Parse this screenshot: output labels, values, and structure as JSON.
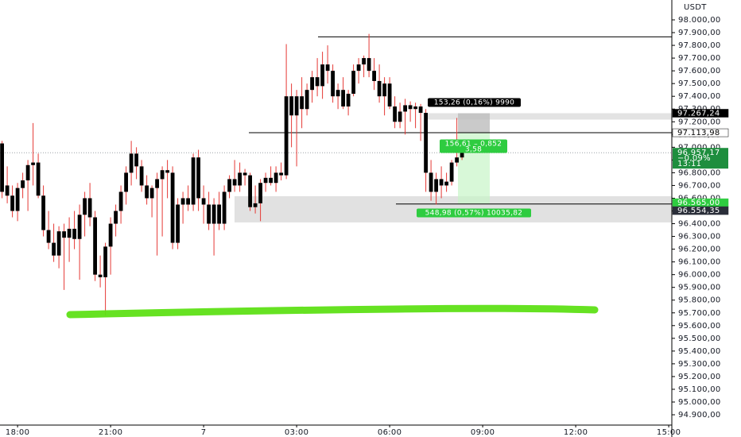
{
  "chart_data": {
    "type": "candlestick",
    "currency": "USDT",
    "xlim": [
      -3.4,
      126.6
    ],
    "ylim": [
      94819,
      98156
    ],
    "xticks": [
      {
        "value": 0,
        "label": "18:00"
      },
      {
        "value": 18,
        "label": "21:00"
      },
      {
        "value": 36,
        "label": "7"
      },
      {
        "value": 54,
        "label": "03:00"
      },
      {
        "value": 72,
        "label": "06:00"
      },
      {
        "value": 90,
        "label": "09:00"
      },
      {
        "value": 108,
        "label": "12:00"
      },
      {
        "value": 126,
        "label": "15:00"
      }
    ],
    "yticks": [
      {
        "value": 98000,
        "label": "98.000,00"
      },
      {
        "value": 97900,
        "label": "97.900,00"
      },
      {
        "value": 97800,
        "label": "97.800,00"
      },
      {
        "value": 97700,
        "label": "97.700,00"
      },
      {
        "value": 97600,
        "label": "97.600,00"
      },
      {
        "value": 97500,
        "label": "97.500,00"
      },
      {
        "value": 97400,
        "label": "97.400,00"
      },
      {
        "value": 97300,
        "label": "97.300,00"
      },
      {
        "value": 97200,
        "label": "97.200,00"
      },
      {
        "value": 97100,
        "label": "97.100,00"
      },
      {
        "value": 97000,
        "label": "97.000,00"
      },
      {
        "value": 96900,
        "label": "96.900,00"
      },
      {
        "value": 96800,
        "label": "96.800,00"
      },
      {
        "value": 96700,
        "label": "96.700,00"
      },
      {
        "value": 96600,
        "label": "96.600,00"
      },
      {
        "value": 96500,
        "label": "96.500,00"
      },
      {
        "value": 96400,
        "label": "96.400,00"
      },
      {
        "value": 96300,
        "label": "96.300,00"
      },
      {
        "value": 96200,
        "label": "96.200,00"
      },
      {
        "value": 96100,
        "label": "96.100,00"
      },
      {
        "value": 96000,
        "label": "96.000,00"
      },
      {
        "value": 95900,
        "label": "95.900,00"
      },
      {
        "value": 95800,
        "label": "95.800,00"
      },
      {
        "value": 95700,
        "label": "95.700,00"
      },
      {
        "value": 95600,
        "label": "95.600,00"
      },
      {
        "value": 95500,
        "label": "95.500,00"
      },
      {
        "value": 95400,
        "label": "95.400,00"
      },
      {
        "value": 95300,
        "label": "95.300,00"
      },
      {
        "value": 95200,
        "label": "95.200,00"
      },
      {
        "value": 95100,
        "label": "95.100,00"
      },
      {
        "value": 95000,
        "label": "95.000,00"
      },
      {
        "value": 94900,
        "label": "94.900,00"
      }
    ],
    "body_color": "#000000",
    "wick_color": "#e53935",
    "x": [
      -3,
      -2,
      -1,
      0,
      1,
      2,
      3,
      4,
      5,
      6,
      7,
      8,
      9,
      10,
      11,
      12,
      13,
      14,
      15,
      16,
      17,
      18,
      19,
      20,
      21,
      22,
      23,
      24,
      25,
      26,
      27,
      28,
      29,
      30,
      31,
      32,
      33,
      34,
      35,
      36,
      37,
      38,
      39,
      40,
      41,
      42,
      43,
      44,
      45,
      46,
      47,
      48,
      49,
      50,
      51,
      52,
      53,
      54,
      55,
      56,
      57,
      58,
      59,
      60,
      61,
      62,
      63,
      64,
      65,
      66,
      67,
      68,
      69,
      70,
      71,
      72,
      73,
      74,
      75,
      76,
      77,
      78,
      79,
      80,
      81,
      82,
      83,
      84,
      85,
      86
    ],
    "open": [
      96650,
      96700,
      96620,
      96500,
      96680,
      96740,
      96860,
      96880,
      96620,
      96350,
      96250,
      96150,
      96340,
      96290,
      96360,
      96280,
      96470,
      96600,
      96450,
      96000,
      95980,
      96220,
      96400,
      96500,
      96650,
      96800,
      96950,
      96850,
      96700,
      96600,
      96680,
      96750,
      96820,
      96800,
      96250,
      96550,
      96600,
      96550,
      96920,
      96600,
      96550,
      96400,
      96550,
      96400,
      96650,
      96750,
      96700,
      96800,
      96780,
      96530,
      96560,
      96720,
      96760,
      96720,
      96800,
      96780,
      97400,
      97250,
      97400,
      97300,
      97450,
      97550,
      97480,
      97650,
      97600,
      97400,
      97450,
      97320,
      97420,
      97600,
      97650,
      97700,
      97600,
      97520,
      97400,
      97500,
      97320,
      97200,
      97280,
      97330,
      97300,
      97320,
      97270,
      96800,
      96650,
      96750,
      96700,
      96730,
      96880,
      96920
    ],
    "high": [
      97050,
      96850,
      96700,
      96720,
      96800,
      96900,
      97190,
      96950,
      96700,
      96500,
      96400,
      96380,
      96400,
      96450,
      96500,
      96550,
      96650,
      96720,
      96500,
      96150,
      96250,
      96450,
      96550,
      96700,
      96850,
      97050,
      97000,
      96900,
      96780,
      96700,
      96800,
      96850,
      96900,
      96850,
      96600,
      96650,
      96700,
      96950,
      96980,
      96700,
      96650,
      96600,
      96650,
      96700,
      96780,
      96900,
      96880,
      96830,
      96800,
      96700,
      96750,
      96800,
      96850,
      96850,
      96880,
      97810,
      97500,
      97450,
      97550,
      97500,
      97600,
      97700,
      97750,
      97800,
      97650,
      97500,
      97550,
      97450,
      97650,
      97700,
      97720,
      97890,
      97700,
      97650,
      97550,
      97550,
      97400,
      97350,
      97380,
      97360,
      97350,
      97340,
      97300,
      96900,
      96800,
      96850,
      96800,
      96900,
      97230,
      96980
    ],
    "low": [
      96600,
      96560,
      96450,
      96420,
      96600,
      96500,
      96700,
      96600,
      96300,
      96200,
      96100,
      96050,
      95880,
      96100,
      96200,
      95960,
      96300,
      96380,
      95950,
      95900,
      95680,
      96000,
      96300,
      96400,
      96550,
      96700,
      96750,
      96650,
      96550,
      96450,
      96150,
      96300,
      96600,
      96200,
      96200,
      96400,
      96500,
      96500,
      96500,
      96400,
      96350,
      96150,
      96350,
      96350,
      96600,
      96650,
      96650,
      96700,
      96500,
      96480,
      96420,
      96650,
      96700,
      96650,
      96740,
      96750,
      97000,
      96850,
      97150,
      97250,
      97350,
      97400,
      97380,
      97500,
      97350,
      97300,
      97300,
      97250,
      97400,
      97500,
      97550,
      97550,
      97450,
      97350,
      97250,
      97300,
      97150,
      97150,
      97100,
      97200,
      97150,
      97050,
      96650,
      96580,
      96550,
      96600,
      96650,
      96700,
      96850,
      96900
    ],
    "close": [
      97030,
      96620,
      96500,
      96680,
      96740,
      96860,
      96880,
      96620,
      96350,
      96250,
      96150,
      96340,
      96290,
      96360,
      96280,
      96470,
      96600,
      96450,
      96000,
      95980,
      96220,
      96400,
      96500,
      96650,
      96800,
      96950,
      96850,
      96700,
      96600,
      96680,
      96750,
      96820,
      96800,
      96250,
      96550,
      96600,
      96550,
      96920,
      96600,
      96550,
      96400,
      96550,
      96400,
      96650,
      96750,
      96700,
      96800,
      96780,
      96530,
      96560,
      96720,
      96760,
      96720,
      96800,
      96780,
      97400,
      97250,
      97400,
      97300,
      97450,
      97550,
      97480,
      97650,
      97600,
      97400,
      97450,
      97320,
      97420,
      97600,
      97650,
      97700,
      97600,
      97520,
      97400,
      97500,
      97320,
      97200,
      97280,
      97330,
      97300,
      97320,
      97270,
      96800,
      96650,
      96750,
      96700,
      96730,
      96880,
      96920,
      96957.17
    ],
    "levels": [
      97867,
      97113.98,
      96554.35
    ],
    "zone": [
      96410,
      96616
    ],
    "position": {
      "stop": 97267.24,
      "entry": 97113.98,
      "target": 96554.35
    },
    "annotations": [
      {
        "text": "153,26 (0,16%) 9990",
        "color": "#000000"
      },
      {
        "text": "156,61 – 0,852",
        "sub": "3,58",
        "color": "#2ecc40"
      },
      {
        "text": "548,98 (0,57%) 10035,82",
        "color": "#2ecc40"
      }
    ],
    "price_tags": [
      {
        "value": 97267.24,
        "label": "97.267,24",
        "color": "#000000",
        "text_color": "#ffffff"
      },
      {
        "value": 97113.98,
        "label": "97.113,98",
        "color": "#ffffff",
        "text_color": "#000000"
      },
      {
        "value": 96565,
        "label": "96.565,00",
        "color": "#2ecc40",
        "text_color": "#ffffff"
      },
      {
        "value": 96554.35,
        "label": "96.554,35",
        "color": "#2a2e39",
        "text_color": "#ffffff"
      }
    ],
    "current": {
      "value": 96957.17,
      "label": "96.957,17",
      "change": "−0,09%",
      "timer": "13:11",
      "color": "#1e8e3e"
    }
  }
}
